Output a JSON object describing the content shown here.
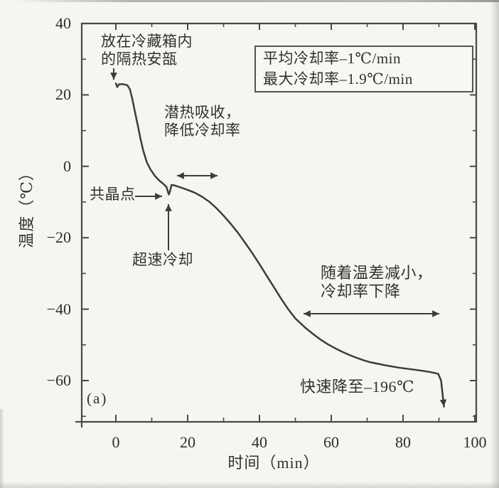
{
  "figure": {
    "panel_label": "(a)",
    "paper_color": "#f7f5f1",
    "ink_color": "#3d3c39"
  },
  "chart_data": {
    "type": "line",
    "title": "",
    "xlabel": "时间（min）",
    "ylabel": "温度（℃）",
    "xlim": [
      -10,
      100.5
    ],
    "ylim": [
      -71.5,
      40
    ],
    "x_ticks_major": [
      0,
      20,
      40,
      60,
      80,
      100
    ],
    "x_ticks_minor": [
      10,
      30,
      50,
      70,
      90
    ],
    "y_ticks_major": [
      40,
      20,
      0,
      -20,
      -40,
      -60
    ],
    "y_ticks_minor": [
      30,
      10,
      -10,
      -30,
      -50,
      -70
    ],
    "grid": false,
    "frame": "box",
    "legend_box": {
      "position": "top-right",
      "lines": [
        "平均冷却率–1℃/min",
        "最大冷却率–1.9℃/min"
      ]
    },
    "series": [
      {
        "name": "cooling-curve",
        "end_marker": "arrowhead",
        "points": [
          [
            0,
            23.2
          ],
          [
            0.4,
            22.2
          ],
          [
            0.9,
            23.0
          ],
          [
            2.0,
            23.0
          ],
          [
            3.2,
            22.7
          ],
          [
            3.9,
            21.6
          ],
          [
            4.6,
            18.8
          ],
          [
            5.2,
            15.8
          ],
          [
            6.0,
            12.0
          ],
          [
            6.8,
            8.0
          ],
          [
            7.6,
            4.5
          ],
          [
            8.6,
            1.2
          ],
          [
            9.6,
            -0.8
          ],
          [
            10.8,
            -2.6
          ],
          [
            12.0,
            -3.9
          ],
          [
            13.2,
            -4.9
          ],
          [
            14.1,
            -5.8
          ],
          [
            14.75,
            -7.9
          ],
          [
            15.1,
            -6.9
          ],
          [
            15.5,
            -5.2
          ],
          [
            16.5,
            -5.4
          ],
          [
            18,
            -5.9
          ],
          [
            20,
            -6.6
          ],
          [
            22,
            -7.4
          ],
          [
            24,
            -8.5
          ],
          [
            26,
            -9.9
          ],
          [
            28,
            -11.7
          ],
          [
            30,
            -13.8
          ],
          [
            32,
            -16.1
          ],
          [
            34,
            -18.6
          ],
          [
            36,
            -21.4
          ],
          [
            38,
            -24.3
          ],
          [
            40,
            -27.4
          ],
          [
            42,
            -30.6
          ],
          [
            44,
            -33.8
          ],
          [
            46,
            -37.0
          ],
          [
            48,
            -40.0
          ],
          [
            50,
            -42.6
          ],
          [
            51.5,
            -44.0
          ],
          [
            53,
            -45.4
          ],
          [
            55,
            -47.0
          ],
          [
            57,
            -48.5
          ],
          [
            59,
            -49.8
          ],
          [
            61,
            -50.9
          ],
          [
            63,
            -51.9
          ],
          [
            65,
            -52.8
          ],
          [
            67,
            -53.6
          ],
          [
            69,
            -54.3
          ],
          [
            71,
            -54.9
          ],
          [
            73.5,
            -55.4
          ],
          [
            76,
            -55.9
          ],
          [
            79,
            -56.4
          ],
          [
            82,
            -56.8
          ],
          [
            85,
            -57.2
          ],
          [
            87.5,
            -57.6
          ],
          [
            89.8,
            -58.1
          ],
          [
            90.6,
            -60.0
          ],
          [
            91.4,
            -67.3
          ]
        ]
      }
    ],
    "annotations": [
      {
        "id": "insulated-vial",
        "text": "放在冷藏箱内\n的隔热安瓿"
      },
      {
        "id": "latent-heat",
        "text": "潜热吸收，\n降低冷却率"
      },
      {
        "id": "eutectic-point",
        "text": "共晶点"
      },
      {
        "id": "supercooling",
        "text": "超速冷却"
      },
      {
        "id": "temp-diff",
        "text": "随着温差减小，\n冷却率下降"
      },
      {
        "id": "rapid-drop",
        "text": "快速降至–196℃"
      }
    ]
  }
}
